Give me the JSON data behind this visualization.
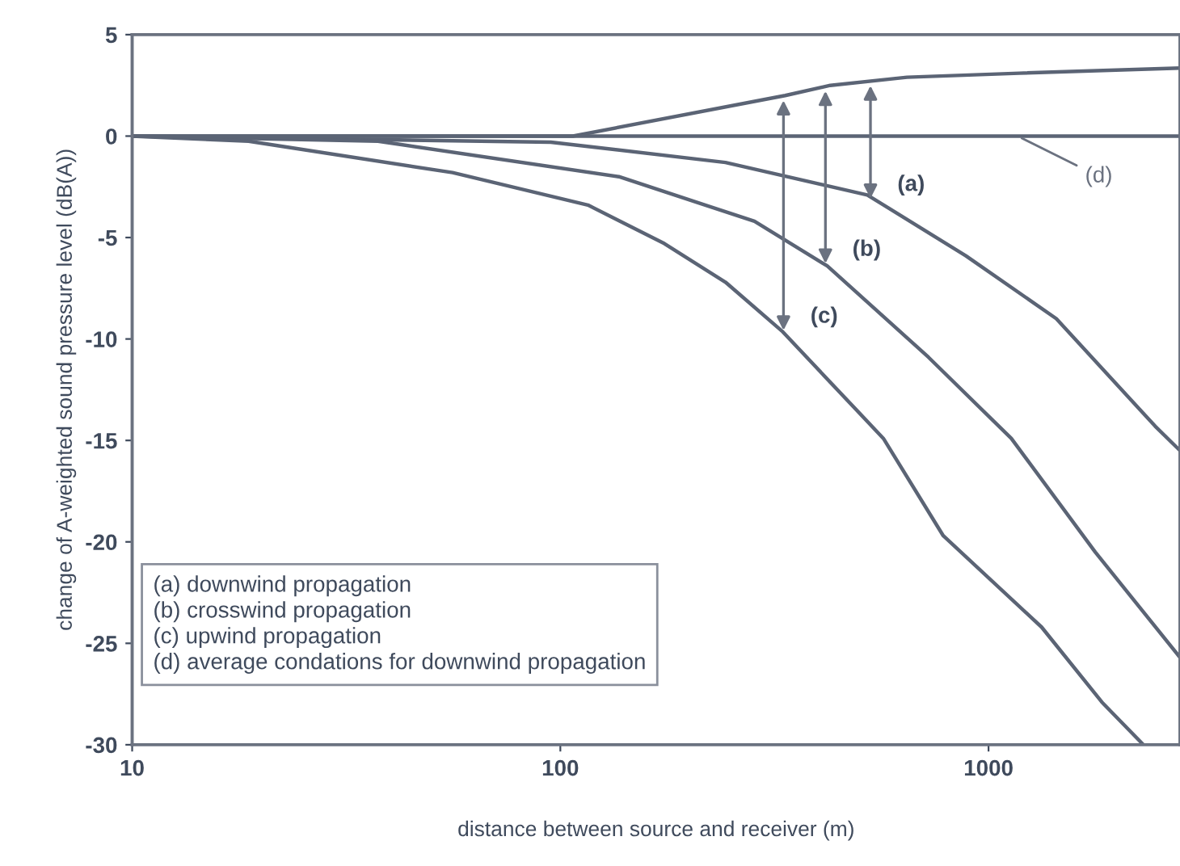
{
  "chart_data": {
    "type": "line",
    "xlabel": "distance between source and receiver (m)",
    "ylabel": "change of A-weighted sound pressure level (dB(A))",
    "log": "x",
    "xlim": [
      10,
      2800
    ],
    "xticks": [
      10,
      100,
      1000
    ],
    "ylim": [
      -30,
      5
    ],
    "yticks": [
      -30,
      -25,
      -20,
      -15,
      -10,
      -5,
      0,
      5
    ],
    "grid": false,
    "marker": "none",
    "line_style": "solid",
    "series": [
      {
        "color": "#5b6475",
        "x": [
          10,
          107,
          335,
          427,
          645,
          1180,
          2800
        ],
        "values": [
          0,
          0,
          2.0,
          2.5,
          2.9,
          3.1,
          3.35
        ]
      },
      {
        "color": "#5b6475",
        "x": [
          10,
          95,
          243,
          521,
          885,
          1440,
          2450,
          2800
        ],
        "values": [
          0,
          -0.3,
          -1.3,
          -2.9,
          -5.9,
          -9.0,
          -14.3,
          -15.5
        ]
      },
      {
        "color": "#5b6475",
        "x": [
          10,
          37.5,
          137,
          284,
          420,
          724,
          1130,
          1775,
          2800
        ],
        "values": [
          0,
          -0.25,
          -2.0,
          -4.2,
          -6.4,
          -10.9,
          -14.9,
          -20.5,
          -25.7
        ]
      },
      {
        "color": "#5b6475",
        "x": [
          10,
          18.7,
          56,
          116,
          175,
          243,
          329,
          568,
          784,
          1330,
          1840,
          2300
        ],
        "values": [
          0,
          -0.25,
          -1.8,
          -3.4,
          -5.3,
          -7.2,
          -9.6,
          -14.9,
          -19.7,
          -24.2,
          -27.9,
          -30
        ]
      },
      {
        "color": "#5b6475",
        "x": [
          10,
          2800
        ],
        "values": [
          0,
          0
        ]
      }
    ],
    "annotations": [
      {
        "text": "(a)",
        "x": 530,
        "y": -3.3
      },
      {
        "text": "(b)",
        "x": 416,
        "y": -6.5
      },
      {
        "text": "(c)",
        "x": 332,
        "y": -9.8
      },
      {
        "text": "(d)",
        "x": 1170,
        "y": 0
      },
      "(a) downwind propagation",
      "(b) crosswind propagation",
      "(c) upwind propagation",
      "(d) average condations for downwind propagation"
    ]
  }
}
